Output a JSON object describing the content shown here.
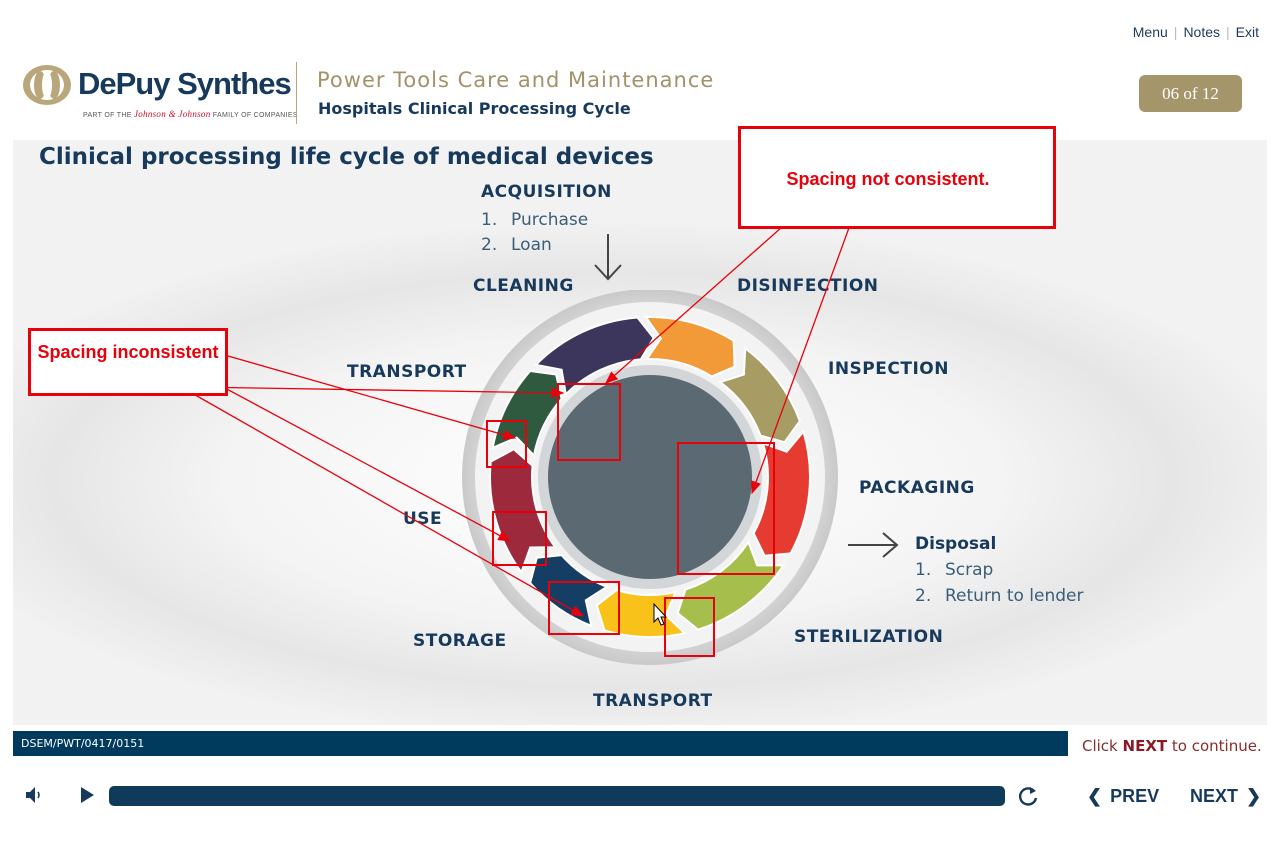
{
  "header": {
    "links": [
      "Menu",
      "Notes",
      "Exit"
    ],
    "brand": "DePuy Synthes",
    "brand_sub_prefix": "PART OF THE",
    "brand_sub_jj": "Johnson & Johnson",
    "brand_sub_suffix": "FAMILY OF COMPANIES",
    "course_title": "Power Tools Care and Maintenance",
    "course_subtitle": "Hospitals Clinical Processing Cycle",
    "pager": "06 of 12"
  },
  "slide": {
    "title": "Clinical processing life cycle of medical devices",
    "acquisition": {
      "label": "ACQUISITION",
      "items": [
        {
          "num": "1.",
          "text": "Purchase"
        },
        {
          "num": "2.",
          "text": "Loan"
        }
      ]
    },
    "disposal": {
      "label": "Disposal",
      "items": [
        {
          "num": "1.",
          "text": "Scrap"
        },
        {
          "num": "2.",
          "text": "Return to lender"
        }
      ]
    },
    "cycle_labels": {
      "cleaning": "CLEANING",
      "disinfection": "DISINFECTION",
      "inspection": "INSPECTION",
      "packaging": "PACKAGING",
      "sterilization": "STERILIZATION",
      "transport_bottom": "TRANSPORT",
      "storage": "STORAGE",
      "use": "USE",
      "transport_left": "TRANSPORT"
    },
    "segment_colors": {
      "cleaning": "#3d365c",
      "disinfection": "#f29a38",
      "inspection": "#a79c64",
      "packaging": "#e63b31",
      "sterilization": "#a6bf4c",
      "transport_bottom": "#f8c21a",
      "storage": "#143e63",
      "use": "#9c2a3c",
      "transport_left": "#2f5a40",
      "center": "#5b6972"
    }
  },
  "annotations": {
    "callout_left": "Spacing inconsistent",
    "callout_right": "Spacing not consistent.",
    "color": "#e8000b"
  },
  "footer": {
    "code": "DSEM/PWT/0417/0151",
    "continue_prefix": "Click",
    "continue_strong": "NEXT",
    "continue_suffix": "to continue.",
    "prev": "PREV",
    "next": "NEXT"
  }
}
